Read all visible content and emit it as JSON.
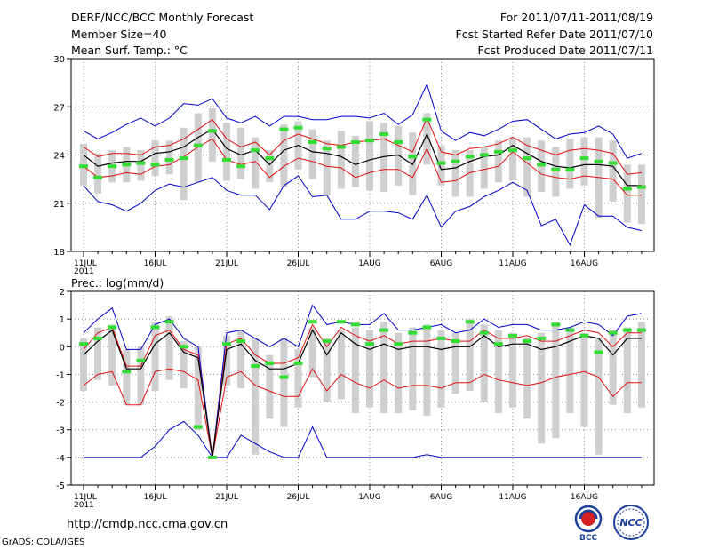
{
  "header": {
    "title": "DERF/NCC/BCC Monthly Forecast",
    "member_size": "Member Size=40",
    "variable": "Mean Surf. Temp.: °C",
    "period": "For 2011/07/11-2011/08/19",
    "started": "Fcst Started Refer Date 2011/07/10",
    "produced": "Fcst Produced Date 2011/07/11"
  },
  "footer": {
    "url": "http://cmdp.ncc.cma.gov.cn",
    "grads": "GrADS: COLA/IGES",
    "logo_bcc": "BCC",
    "logo_ncc": "NCC"
  },
  "colors": {
    "box": "#cfcfcf",
    "median": "#33dd33",
    "mean": "#000000",
    "stdev": "#e01010",
    "extreme": "#0000cc",
    "grid": "#888888"
  },
  "chart_data": [
    {
      "type": "boxplot-ensemble",
      "title": "Mean Surf. Temp.: °C",
      "ylim": [
        18,
        30
      ],
      "yticks": [
        18,
        21,
        24,
        27,
        30
      ],
      "x_ticks": [
        "11JUL\n2011",
        "16JUL",
        "21JUL",
        "26JUL",
        "1AUG",
        "6AUG",
        "11AUG",
        "16AUG"
      ],
      "days": 40,
      "grid": true,
      "series": {
        "max": [
          25.5,
          25.0,
          25.4,
          25.9,
          26.3,
          25.8,
          26.3,
          27.2,
          27.1,
          27.5,
          26.3,
          26.0,
          26.4,
          25.8,
          26.4,
          26.4,
          26.2,
          26.2,
          26.4,
          26.4,
          26.3,
          26.6,
          25.9,
          26.5,
          28.4,
          25.5,
          24.9,
          25.4,
          25.2,
          25.6,
          26.1,
          26.2,
          25.6,
          25.0,
          25.3,
          25.4,
          25.8,
          25.3,
          23.8,
          24.1
        ],
        "p_hi": [
          24.5,
          23.9,
          24.1,
          24.1,
          24.0,
          24.5,
          24.6,
          25.0,
          25.6,
          26.2,
          25.0,
          24.5,
          24.8,
          24.0,
          24.9,
          25.3,
          25.0,
          24.7,
          24.6,
          24.8,
          24.9,
          25.0,
          24.6,
          24.2,
          26.3,
          24.2,
          24.0,
          24.4,
          24.5,
          24.7,
          25.1,
          24.6,
          24.3,
          24.0,
          24.3,
          24.4,
          24.3,
          24.1,
          22.8,
          22.9
        ],
        "mean": [
          24.0,
          23.3,
          23.5,
          23.6,
          23.6,
          24.1,
          24.2,
          24.5,
          25.1,
          25.6,
          24.4,
          24.0,
          24.3,
          23.4,
          24.3,
          24.6,
          24.2,
          24.1,
          23.9,
          23.4,
          23.7,
          23.9,
          24.0,
          23.4,
          25.3,
          23.1,
          23.2,
          23.6,
          23.9,
          24.0,
          24.6,
          24.1,
          23.6,
          23.3,
          23.2,
          23.4,
          23.4,
          23.3,
          22.1,
          22.1
        ],
        "p_lo": [
          23.3,
          22.6,
          22.7,
          22.9,
          22.8,
          23.3,
          23.4,
          23.9,
          24.5,
          25.0,
          23.7,
          23.4,
          23.6,
          22.6,
          23.3,
          23.8,
          23.6,
          23.3,
          23.2,
          22.6,
          22.9,
          23.1,
          23.1,
          22.6,
          24.4,
          22.3,
          22.4,
          22.9,
          23.1,
          23.3,
          24.2,
          23.5,
          22.8,
          22.6,
          22.5,
          22.7,
          22.6,
          22.5,
          21.5,
          21.5
        ],
        "min": [
          22.1,
          21.1,
          20.9,
          20.5,
          21.0,
          21.8,
          22.2,
          22.0,
          22.3,
          22.6,
          21.8,
          21.5,
          21.5,
          20.6,
          22.1,
          22.7,
          21.4,
          21.5,
          20.0,
          20.0,
          20.5,
          20.5,
          20.4,
          20.0,
          21.5,
          19.5,
          20.5,
          20.8,
          21.4,
          21.8,
          22.3,
          21.8,
          19.6,
          20.0,
          18.4,
          20.9,
          20.2,
          20.2,
          19.5,
          19.3
        ],
        "median": [
          23.3,
          22.6,
          23.3,
          23.4,
          23.5,
          23.4,
          23.7,
          23.8,
          24.6,
          25.5,
          23.7,
          23.3,
          24.3,
          23.8,
          25.6,
          25.7,
          24.8,
          24.4,
          24.5,
          24.8,
          24.9,
          25.3,
          24.8,
          23.9,
          26.2,
          23.5,
          23.6,
          23.9,
          24.0,
          24.2,
          24.3,
          23.8,
          23.4,
          23.1,
          23.1,
          23.8,
          23.6,
          23.5,
          21.9,
          22.0
        ],
        "box_hi": [
          24.7,
          24.1,
          24.3,
          24.5,
          24.3,
          24.9,
          24.9,
          25.7,
          26.6,
          26.9,
          26.0,
          25.7,
          25.1,
          24.3,
          25.9,
          26.1,
          25.6,
          24.9,
          25.5,
          25.2,
          26.1,
          26.0,
          25.8,
          25.4,
          26.6,
          24.6,
          24.3,
          24.3,
          24.5,
          24.9,
          25.1,
          25.1,
          24.9,
          24.5,
          25.0,
          25.1,
          25.1,
          24.9,
          23.4,
          23.4
        ],
        "box_lo": [
          22.1,
          21.6,
          22.3,
          22.3,
          22.4,
          22.7,
          22.8,
          21.2,
          22.3,
          23.6,
          22.4,
          22.5,
          21.9,
          22.3,
          22.0,
          23.1,
          22.5,
          21.5,
          21.9,
          22.0,
          21.8,
          21.7,
          22.1,
          21.5,
          23.4,
          22.1,
          21.4,
          21.4,
          21.9,
          22.3,
          22.4,
          21.4,
          21.7,
          21.4,
          21.9,
          22.1,
          20.1,
          21.1,
          19.8,
          19.7
        ]
      }
    },
    {
      "type": "boxplot-ensemble",
      "title": "Prec.: log(mm/d)",
      "ylim": [
        -5,
        2
      ],
      "yticks": [
        -5,
        -4,
        -3,
        -2,
        -1,
        0,
        1,
        2
      ],
      "x_ticks": [
        "11JUL\n2011",
        "16JUL",
        "21JUL",
        "26JUL",
        "1AUG",
        "6AUG",
        "11AUG",
        "16AUG"
      ],
      "days": 40,
      "grid": true,
      "series": {
        "max": [
          0.5,
          1.0,
          1.4,
          -0.1,
          -0.1,
          0.8,
          1.0,
          0.3,
          0.0,
          -4.0,
          0.5,
          0.6,
          0.3,
          0.0,
          0.3,
          0.0,
          1.5,
          0.8,
          0.9,
          0.8,
          0.8,
          1.2,
          0.6,
          0.6,
          0.7,
          0.8,
          0.5,
          0.6,
          1.0,
          0.7,
          0.8,
          0.8,
          0.6,
          0.6,
          0.7,
          0.9,
          0.8,
          0.4,
          1.1,
          1.2
        ],
        "p_hi": [
          -0.1,
          0.5,
          0.7,
          -0.7,
          -0.7,
          0.4,
          0.6,
          -0.1,
          -0.3,
          -4.0,
          0.1,
          0.3,
          -0.3,
          -0.6,
          -0.6,
          -0.4,
          0.8,
          0.0,
          0.7,
          0.4,
          0.2,
          0.4,
          0.1,
          0.2,
          0.2,
          0.3,
          0.2,
          0.2,
          0.6,
          0.3,
          0.3,
          0.4,
          0.2,
          0.2,
          0.4,
          0.6,
          0.5,
          0.0,
          0.5,
          0.5
        ],
        "mean": [
          -0.3,
          0.2,
          0.6,
          -0.8,
          -0.8,
          0.1,
          0.5,
          -0.2,
          -0.4,
          -4.0,
          -0.1,
          0.1,
          -0.5,
          -0.8,
          -0.8,
          -0.6,
          0.6,
          -0.3,
          0.5,
          0.1,
          -0.1,
          0.1,
          -0.1,
          0.0,
          0.0,
          -0.1,
          0.0,
          0.0,
          0.4,
          0.0,
          0.1,
          0.1,
          -0.1,
          0.0,
          0.2,
          0.4,
          0.3,
          -0.3,
          0.3,
          0.3
        ],
        "p_lo": [
          -1.4,
          -1.0,
          -0.9,
          -2.1,
          -2.1,
          -0.9,
          -0.8,
          -0.9,
          -1.2,
          -4.0,
          -1.1,
          -0.9,
          -1.4,
          -1.6,
          -1.8,
          -1.8,
          -0.8,
          -1.6,
          -1.0,
          -1.3,
          -1.5,
          -1.2,
          -1.5,
          -1.4,
          -1.4,
          -1.5,
          -1.3,
          -1.3,
          -1.0,
          -1.2,
          -1.3,
          -1.4,
          -1.3,
          -1.1,
          -1.0,
          -0.9,
          -1.1,
          -1.8,
          -1.3,
          -1.3
        ],
        "min": [
          -4.0,
          -4.0,
          -4.0,
          -4.0,
          -4.0,
          -3.6,
          -3.0,
          -2.7,
          -3.2,
          -4.0,
          -4.0,
          -3.2,
          -3.5,
          -3.8,
          -4.0,
          -4.0,
          -2.9,
          -4.0,
          -4.0,
          -4.0,
          -4.0,
          -4.0,
          -4.0,
          -4.0,
          -3.9,
          -4.0,
          -4.0,
          -4.0,
          -4.0,
          -4.0,
          -4.0,
          -4.0,
          -4.0,
          -4.0,
          -4.0,
          -4.0,
          -4.0,
          -4.0,
          -4.0,
          -4.0
        ],
        "median": [
          0.1,
          0.3,
          0.7,
          -0.9,
          -0.5,
          0.7,
          0.9,
          0.0,
          -2.9,
          -4.0,
          0.1,
          0.2,
          -0.7,
          -0.6,
          -1.1,
          -0.6,
          0.9,
          0.2,
          0.9,
          0.8,
          0.1,
          0.6,
          0.1,
          0.5,
          0.7,
          0.3,
          0.2,
          0.9,
          0.5,
          0.1,
          0.4,
          0.2,
          0.3,
          0.8,
          0.6,
          0.4,
          -0.2,
          0.5,
          0.6,
          0.6
        ],
        "box_hi": [
          0.3,
          0.7,
          0.8,
          -0.1,
          0.0,
          0.9,
          1.1,
          0.2,
          0.0,
          -4.0,
          0.4,
          0.6,
          0.3,
          -0.3,
          0.3,
          -0.1,
          0.7,
          0.3,
          0.6,
          0.7,
          0.6,
          0.9,
          0.5,
          0.7,
          0.8,
          0.6,
          0.5,
          1.0,
          0.8,
          0.6,
          0.5,
          0.3,
          0.5,
          0.9,
          0.7,
          0.5,
          0.3,
          0.6,
          0.7,
          0.9
        ],
        "box_lo": [
          -1.6,
          -1.2,
          -1.4,
          -2.1,
          -2.1,
          -1.6,
          -1.2,
          -1.5,
          -3.0,
          -4.0,
          -1.4,
          -1.5,
          -3.9,
          -2.6,
          -2.9,
          -2.2,
          -1.1,
          -2.0,
          -1.9,
          -2.4,
          -2.2,
          -2.4,
          -2.4,
          -2.3,
          -2.5,
          -2.2,
          -1.7,
          -1.6,
          -2.0,
          -2.4,
          -2.2,
          -2.6,
          -3.5,
          -3.3,
          -2.4,
          -2.9,
          -3.9,
          -2.1,
          -2.4,
          -2.2
        ]
      }
    }
  ]
}
